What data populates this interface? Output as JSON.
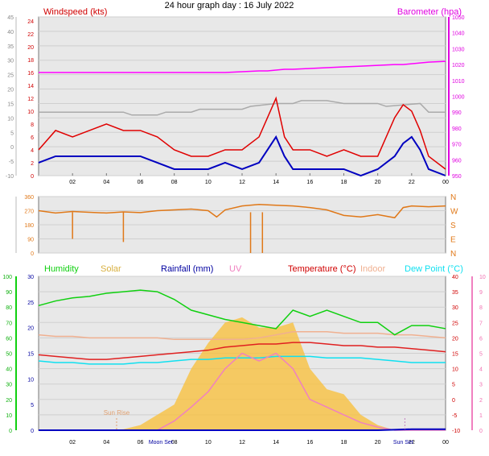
{
  "title": "24 hour graph day : 16 July 2022",
  "x_ticks": [
    "02",
    "04",
    "06",
    "08",
    "10",
    "12",
    "14",
    "16",
    "18",
    "20",
    "22",
    "00"
  ],
  "chart_data": [
    {
      "type": "line",
      "panel": "wind-pressure",
      "left_title": "Windspeed (kts)",
      "right_title": "Barometer (hpa)",
      "left_outer_ticks": [
        "45",
        "40",
        "35",
        "30",
        "25",
        "20",
        "15",
        "10",
        "5",
        "0",
        "-5",
        "-10"
      ],
      "left_inner_ticks": [
        "24",
        "22",
        "20",
        "18",
        "16",
        "14",
        "12",
        "10",
        "8",
        "6",
        "4",
        "2",
        "0"
      ],
      "right_ticks": [
        "1050",
        "1040",
        "1030",
        "1020",
        "1010",
        "1000",
        "990",
        "980",
        "970",
        "960",
        "950"
      ],
      "grid": true,
      "x_hours": [
        0,
        1,
        2,
        3,
        4,
        5,
        6,
        7,
        8,
        9,
        10,
        11,
        12,
        13,
        13.5,
        14,
        14.5,
        15,
        16,
        17,
        18,
        19,
        20,
        21,
        21.5,
        22,
        22.5,
        23,
        24
      ],
      "series": [
        {
          "name": "Gust",
          "color": "#e00000",
          "values": [
            4,
            7,
            6,
            7,
            8,
            7,
            7,
            6,
            4,
            3,
            3,
            4,
            4,
            6,
            9,
            12,
            6,
            4,
            4,
            3,
            4,
            3,
            3,
            9,
            11,
            10,
            7,
            3,
            1
          ]
        },
        {
          "name": "Average",
          "color": "#0000c0",
          "values": [
            2,
            3,
            3,
            3,
            3,
            3,
            3,
            2,
            1,
            1,
            1,
            2,
            1,
            2,
            4,
            6,
            3,
            1,
            1,
            1,
            1,
            0,
            1,
            3,
            5,
            6,
            4,
            1,
            0
          ]
        },
        {
          "name": "Barometer",
          "color": "#ff00ff",
          "values": [
            1015,
            1015,
            1015,
            1015,
            1015,
            1015,
            1015,
            1015,
            1015,
            1015,
            1015,
            1015,
            1015.5,
            1016,
            1016,
            1016.5,
            1017,
            1017,
            1017.5,
            1018,
            1018.5,
            1019,
            1019.5,
            1020,
            1020,
            1020.5,
            1021,
            1021.5,
            1022
          ]
        }
      ]
    },
    {
      "type": "line",
      "panel": "wind-direction",
      "left_ticks": [
        "360",
        "270",
        "180",
        "90",
        "0"
      ],
      "right_ticks": [
        "N",
        "W",
        "S",
        "E",
        "N"
      ],
      "grid": true,
      "x_hours": [
        0,
        1,
        2,
        3,
        4,
        5,
        6,
        7,
        8,
        9,
        10,
        10.5,
        11,
        12,
        13,
        14,
        15,
        16,
        17,
        18,
        19,
        20,
        21,
        21.5,
        22,
        23,
        24
      ],
      "series": [
        {
          "name": "Direction",
          "color": "#e07818",
          "values": [
            270,
            255,
            265,
            260,
            255,
            262,
            258,
            270,
            275,
            280,
            270,
            230,
            275,
            300,
            310,
            305,
            300,
            290,
            275,
            240,
            230,
            245,
            225,
            290,
            300,
            295,
            300
          ]
        }
      ]
    },
    {
      "type": "line",
      "panel": "climate",
      "legend": [
        "Humidity",
        "Solar",
        "Rainfall (mm)",
        "UV",
        "Temperature (°C)",
        "Indoor",
        "Dew Point (°C)"
      ],
      "left_outer_ticks": [
        "100",
        "90",
        "80",
        "70",
        "60",
        "50",
        "40",
        "30",
        "20",
        "10",
        "0"
      ],
      "left_inner_ticks": [
        "30",
        "25",
        "20",
        "15",
        "10",
        "5",
        "0"
      ],
      "right_inner_ticks": [
        "40",
        "35",
        "30",
        "25",
        "20",
        "15",
        "10",
        "5",
        "0",
        "-5",
        "-10"
      ],
      "right_outer_ticks": [
        "10",
        "9",
        "8",
        "7",
        "6",
        "5",
        "4",
        "3",
        "2",
        "1",
        "0"
      ],
      "bottom_labels": [
        "Moon Set",
        "Sun Rise",
        "Sun Set"
      ],
      "sun_rise_label": "Sun Rise",
      "grid": true,
      "x_hours": [
        0,
        1,
        2,
        3,
        4,
        5,
        6,
        7,
        8,
        9,
        10,
        11,
        12,
        13,
        14,
        15,
        16,
        17,
        18,
        19,
        20,
        21,
        22,
        23,
        24
      ],
      "series": [
        {
          "name": "Humidity",
          "color": "#10d010",
          "values": [
            81,
            84,
            86,
            87,
            89,
            90,
            91,
            90,
            85,
            78,
            75,
            72,
            70,
            68,
            66,
            78,
            74,
            78,
            74,
            70,
            70,
            62,
            68,
            68,
            66
          ]
        },
        {
          "name": "Temperature (°C)",
          "color": "#e02020",
          "values": [
            14.5,
            14,
            13.5,
            13,
            13,
            13.5,
            14,
            14.5,
            15,
            15.5,
            16,
            17,
            17.5,
            18,
            18,
            18.5,
            18.5,
            18,
            17.5,
            17.5,
            17,
            17,
            16.5,
            16,
            15.5
          ]
        },
        {
          "name": "Indoor",
          "color": "#f0b090",
          "values": [
            21,
            20.5,
            20.5,
            20,
            20,
            20,
            20,
            20,
            19.5,
            19.5,
            19.5,
            19.5,
            19.5,
            20,
            21,
            22,
            22,
            22,
            21.5,
            21.5,
            21.5,
            21,
            21,
            20.5,
            20
          ]
        },
        {
          "name": "Dew Point (°C)",
          "color": "#10e0f0",
          "values": [
            12.5,
            12,
            12,
            11.5,
            11.5,
            11.5,
            12,
            12,
            12.5,
            13,
            13,
            13.5,
            13.5,
            13.5,
            14,
            14,
            14,
            13.5,
            13.5,
            13.5,
            13,
            12.5,
            12,
            12,
            12
          ]
        },
        {
          "name": "Solar",
          "color": "#f8c040",
          "values": [
            0,
            0,
            0,
            0,
            0,
            0.2,
            1,
            3,
            5,
            12,
            17,
            21,
            22,
            20,
            20,
            21,
            12,
            8,
            7,
            3,
            1,
            0,
            0,
            0,
            0
          ]
        },
        {
          "name": "UV",
          "color": "#f080c0",
          "values": [
            0,
            0,
            0,
            0,
            0,
            0,
            0,
            0,
            0.6,
            1.5,
            2.5,
            4,
            5,
            4.5,
            5,
            4,
            2,
            1.5,
            1,
            0.5,
            0.2,
            0,
            0,
            0,
            0
          ]
        },
        {
          "name": "Rainfall (mm)",
          "color": "#0000c0",
          "values": [
            0,
            0,
            0,
            0,
            0,
            0,
            0,
            0,
            0,
            0,
            0,
            0,
            0,
            0,
            0,
            0,
            0,
            0,
            0,
            0,
            0,
            0.1,
            0.2,
            0.2,
            0.2
          ]
        }
      ]
    }
  ]
}
